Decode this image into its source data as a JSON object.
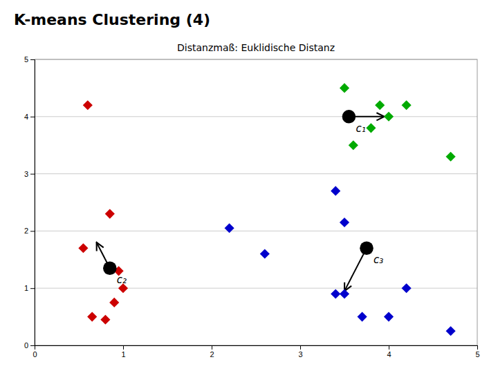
{
  "chart_data": {
    "type": "scatter",
    "title": "K-means Clustering (4)",
    "subtitle": "Distanzmaß: Euklidische Distanz",
    "xlim": [
      0,
      5
    ],
    "ylim": [
      0,
      5
    ],
    "xticks": [
      0,
      1,
      2,
      3,
      4,
      5
    ],
    "yticks": [
      0,
      1,
      2,
      3,
      4,
      5
    ],
    "grid": "y",
    "series": [
      {
        "color": "#00AA00",
        "marker": "diamond",
        "x": [
          3.5,
          3.9,
          4.2,
          4.0,
          3.8,
          3.6,
          4.7
        ],
        "values": [
          4.5,
          4.2,
          4.2,
          4.0,
          3.8,
          3.5,
          3.3
        ]
      },
      {
        "color": "#CC0000",
        "marker": "diamond",
        "x": [
          0.6,
          0.85,
          0.55,
          0.95,
          1.0,
          0.9,
          0.65,
          0.8
        ],
        "values": [
          4.2,
          2.3,
          1.7,
          1.3,
          1.0,
          0.75,
          0.5,
          0.45
        ]
      },
      {
        "color": "#0000CC",
        "marker": "diamond",
        "x": [
          2.2,
          2.6,
          3.4,
          3.5,
          3.4,
          3.5,
          3.7,
          4.0,
          4.2,
          4.7
        ],
        "values": [
          2.05,
          1.6,
          2.7,
          2.15,
          0.9,
          0.9,
          0.5,
          0.5,
          1.0,
          0.25
        ]
      },
      {
        "color": "black",
        "marker": "circle",
        "x": [
          3.55,
          0.85,
          3.75
        ],
        "values": [
          4.0,
          1.35,
          1.7
        ]
      }
    ],
    "annotations": [
      {
        "text": "c₁",
        "x": 3.55,
        "y": 4.0,
        "arrow_x": 3.95,
        "arrow_y": 4.0
      },
      {
        "text": "c₂",
        "x": 0.85,
        "y": 1.35,
        "arrow_x": 0.7,
        "arrow_y": 1.8
      },
      {
        "text": "c₃",
        "x": 3.75,
        "y": 1.7,
        "arrow_x": 3.5,
        "arrow_y": 0.95
      }
    ]
  }
}
